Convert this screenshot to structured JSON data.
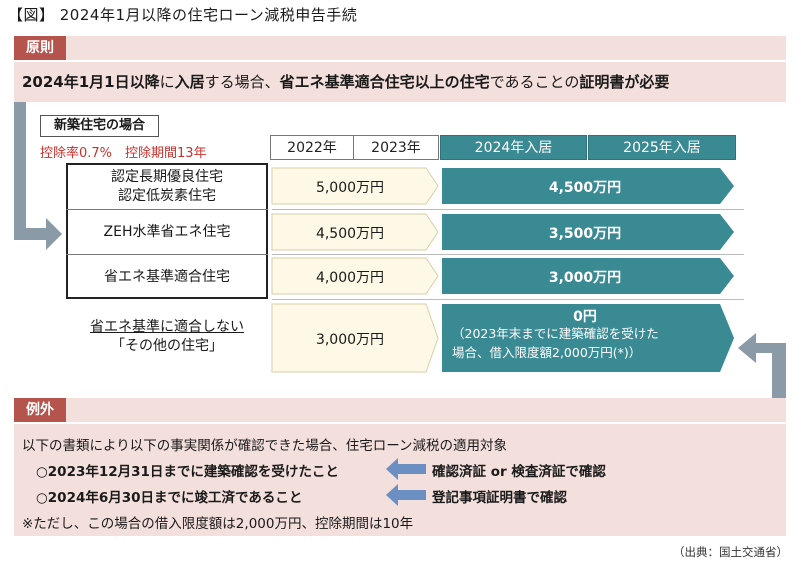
{
  "title": "【図】 2024年1月以降の住宅ローン減税申告手続",
  "principle": {
    "tag": "原則",
    "text_parts": [
      "2024年1月1日以降",
      "に",
      "入居",
      "する場合、",
      "省エネ基準適合住宅以上の住宅",
      "であることの",
      "証明書が必要"
    ]
  },
  "new_house": {
    "label": "新築住宅の場合",
    "rate_text": "控除率0.7%　控除期間13年"
  },
  "columns": [
    "2022年",
    "2023年",
    "2024年入居",
    "2025年入居"
  ],
  "rows": [
    {
      "label_lines": [
        "認定長期優良住宅",
        "認定低炭素住宅"
      ],
      "old_value": "5,000万円",
      "new_value": "4,500万円"
    },
    {
      "label_lines": [
        "ZEH水準省エネ住宅"
      ],
      "old_value": "4,500万円",
      "new_value": "3,500万円"
    },
    {
      "label_lines": [
        "省エネ基準適合住宅"
      ],
      "old_value": "4,000万円",
      "new_value": "3,000万円"
    },
    {
      "label_lines": [
        "省エネ基準に適合しない",
        "「その他の住宅」"
      ],
      "old_value": "3,000万円",
      "new_value": "0円",
      "new_note_lines": [
        "（2023年末までに建築確認を受けた",
        "場合、借入限度額2,000万円(*)）"
      ]
    }
  ],
  "exception": {
    "tag": "例外",
    "intro": "以下の書類により以下の事実関係が確認できた場合、住宅ローン減税の適用対象",
    "items": [
      {
        "left": "○2023年12月31日までに建築確認を受けたこと",
        "right": "確認済証 or 検査済証で確認"
      },
      {
        "left": "○2024年6月30日までに竣工済であること",
        "right": "登記事項証明書で確認"
      }
    ],
    "note": "※ただし、この場合の借入限度額は2,000万円、控除期間は10年"
  },
  "source": "（出典：国土交通省）",
  "colors": {
    "teal": "#3a8a93",
    "tag_red": "#b5534d",
    "band_pink": "#f3e0dc",
    "cream": "#fdf9e6",
    "rate_red": "#c8322c",
    "arrow_gray": "#8a9aa6",
    "arrow_blue": "#6b8fc2"
  }
}
